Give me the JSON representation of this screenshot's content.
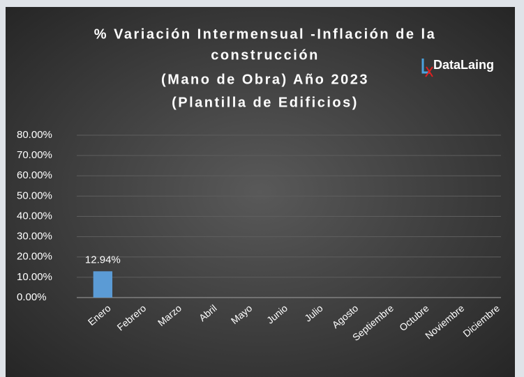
{
  "chart_data": {
    "type": "bar",
    "title": [
      "% Variación Intermensual -Inflación de la",
      "construcción",
      "(Mano de Obra) Año 2023",
      "(Plantilla de Edificios)"
    ],
    "logo": "DataLaing",
    "categories": [
      "Enero",
      "Febrero",
      "Marzo",
      "Abril",
      "Mayo",
      "Junio",
      "Julio",
      "Agosto",
      "Septiembre",
      "Octubre",
      "Noviembre",
      "Diciembre"
    ],
    "values": [
      12.94,
      null,
      null,
      null,
      null,
      null,
      null,
      null,
      null,
      null,
      null,
      null
    ],
    "value_labels": [
      "12.94%",
      null,
      null,
      null,
      null,
      null,
      null,
      null,
      null,
      null,
      null,
      null
    ],
    "color": "#5b9bd5",
    "ylim": [
      0,
      80
    ],
    "yticks": [
      {
        "value": 0,
        "label": "0.00%"
      },
      {
        "value": 10,
        "label": "10.00%"
      },
      {
        "value": 20,
        "label": "20.00%"
      },
      {
        "value": 30,
        "label": "30.00%"
      },
      {
        "value": 40,
        "label": "40.00%"
      },
      {
        "value": 50,
        "label": "50.00%"
      },
      {
        "value": 60,
        "label": "60.00%"
      },
      {
        "value": 70,
        "label": "70.00%"
      },
      {
        "value": 80,
        "label": "80.00%"
      }
    ],
    "grid": true
  }
}
